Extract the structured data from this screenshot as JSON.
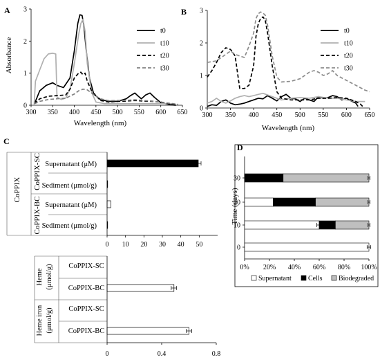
{
  "panel_letters": {
    "A": "A",
    "B": "B",
    "C": "C",
    "D": "D"
  },
  "chart_data": [
    {
      "panel": "A",
      "type": "line",
      "xlabel": "Wavelength (nm)",
      "ylabel": "Absorbance",
      "xlim": [
        300,
        650
      ],
      "ylim": [
        0,
        3
      ],
      "xticks": [
        300,
        350,
        400,
        450,
        500,
        550,
        600,
        650
      ],
      "yticks": [
        0,
        1,
        2,
        3
      ],
      "legend_position": "top-right",
      "series": [
        {
          "name": "t0",
          "color": "#000000",
          "dash": "solid",
          "x": [
            308,
            320,
            335,
            350,
            360,
            375,
            390,
            400,
            408,
            413,
            418,
            422,
            428,
            435,
            445,
            460,
            480,
            500,
            520,
            530,
            540,
            548,
            555,
            565,
            575,
            585,
            600,
            620,
            635
          ],
          "y": [
            0.05,
            0.45,
            0.62,
            0.7,
            0.62,
            0.55,
            0.85,
            1.7,
            2.55,
            2.82,
            2.8,
            2.5,
            1.65,
            0.85,
            0.35,
            0.18,
            0.12,
            0.12,
            0.2,
            0.3,
            0.38,
            0.28,
            0.2,
            0.32,
            0.38,
            0.25,
            0.08,
            0.02,
            0.0
          ]
        },
        {
          "name": "t10",
          "color": "#b0b0b0",
          "dash": "solid",
          "x": [
            307,
            310,
            320,
            330,
            340,
            350,
            357,
            360,
            370,
            380,
            390,
            400,
            410,
            415,
            420,
            425,
            430,
            440,
            450,
            470,
            500,
            550,
            600,
            630
          ],
          "y": [
            0.0,
            0.75,
            1.1,
            1.45,
            1.6,
            1.62,
            1.6,
            0.25,
            0.18,
            0.22,
            0.5,
            1.3,
            2.2,
            2.55,
            2.68,
            2.3,
            1.3,
            0.4,
            0.1,
            0.05,
            0.05,
            0.05,
            0.05,
            0.05
          ]
        },
        {
          "name": "t20",
          "color": "#000000",
          "dash": "dashed",
          "x": [
            308,
            320,
            340,
            360,
            380,
            390,
            400,
            410,
            415,
            420,
            425,
            430,
            440,
            450,
            460,
            480,
            500,
            520,
            540,
            560,
            580,
            600,
            620,
            640
          ],
          "y": [
            0.05,
            0.2,
            0.28,
            0.3,
            0.32,
            0.5,
            0.85,
            1.0,
            1.03,
            0.95,
            1.0,
            0.75,
            0.45,
            0.3,
            0.15,
            0.1,
            0.12,
            0.13,
            0.15,
            0.13,
            0.12,
            0.1,
            0.05,
            0.02
          ]
        },
        {
          "name": "t30",
          "color": "#808080",
          "dash": "dashed",
          "x": [
            308,
            320,
            340,
            360,
            380,
            400,
            410,
            420,
            430,
            440,
            460,
            480,
            500,
            520,
            540,
            560,
            580,
            600,
            620,
            640
          ],
          "y": [
            0.05,
            0.12,
            0.18,
            0.2,
            0.22,
            0.35,
            0.45,
            0.5,
            0.48,
            0.38,
            0.2,
            0.14,
            0.15,
            0.15,
            0.17,
            0.15,
            0.13,
            0.1,
            0.06,
            0.03
          ]
        }
      ]
    },
    {
      "panel": "B",
      "type": "line",
      "xlabel": "Wavelength (nm)",
      "ylabel": "",
      "xlim": [
        300,
        650
      ],
      "ylim": [
        0,
        3
      ],
      "xticks": [
        300,
        350,
        400,
        450,
        500,
        550,
        600,
        650
      ],
      "yticks": [
        0,
        1,
        2,
        3
      ],
      "legend_position": "top-right",
      "series": [
        {
          "name": "t0",
          "color": "#000000",
          "dash": "solid",
          "x": [
            300,
            310,
            320,
            330,
            340,
            350,
            360,
            370,
            380,
            390,
            400,
            410,
            420,
            430,
            440,
            450,
            460,
            470,
            480,
            490,
            500,
            510,
            520,
            530,
            540,
            550,
            560,
            570,
            580,
            590,
            600,
            610,
            620,
            625
          ],
          "y": [
            0.05,
            0.1,
            0.08,
            0.2,
            0.25,
            0.15,
            0.1,
            0.12,
            0.15,
            0.2,
            0.25,
            0.3,
            0.28,
            0.38,
            0.3,
            0.22,
            0.35,
            0.42,
            0.3,
            0.28,
            0.2,
            0.3,
            0.25,
            0.2,
            0.35,
            0.3,
            0.32,
            0.38,
            0.35,
            0.25,
            0.3,
            0.22,
            0.15,
            0.05
          ]
        },
        {
          "name": "t10",
          "color": "#b0b0b0",
          "dash": "solid",
          "x": [
            300,
            310,
            320,
            330,
            340,
            350,
            360,
            370,
            380,
            390,
            400,
            410,
            420,
            430,
            440,
            450,
            460,
            480,
            500,
            520,
            540,
            560,
            580,
            600,
            620,
            640
          ],
          "y": [
            0.15,
            0.2,
            0.3,
            0.2,
            0.15,
            0.22,
            0.3,
            0.35,
            0.38,
            0.35,
            0.38,
            0.42,
            0.45,
            0.4,
            0.35,
            0.3,
            0.25,
            0.3,
            0.32,
            0.3,
            0.35,
            0.3,
            0.3,
            0.25,
            0.2,
            0.2
          ]
        },
        {
          "name": "t20",
          "color": "#000000",
          "dash": "dashed",
          "x": [
            300,
            310,
            320,
            330,
            340,
            350,
            360,
            370,
            380,
            390,
            400,
            405,
            410,
            415,
            420,
            425,
            430,
            440,
            450,
            460,
            480,
            500,
            520,
            540,
            560,
            580,
            600,
            620,
            630,
            635
          ],
          "y": [
            0.95,
            1.15,
            1.4,
            1.7,
            1.85,
            1.8,
            1.6,
            0.6,
            0.6,
            0.7,
            1.3,
            2.2,
            2.6,
            2.75,
            2.8,
            2.7,
            2.3,
            1.3,
            0.5,
            0.3,
            0.25,
            0.25,
            0.25,
            0.3,
            0.3,
            0.32,
            0.3,
            0.2,
            0.12,
            0.05
          ]
        },
        {
          "name": "t30",
          "color": "#8c8c8c",
          "dash": "dashed",
          "x": [
            300,
            320,
            340,
            350,
            360,
            380,
            390,
            400,
            405,
            410,
            415,
            420,
            425,
            430,
            440,
            450,
            460,
            480,
            500,
            520,
            530,
            540,
            550,
            560,
            570,
            580,
            600,
            620,
            640,
            650
          ],
          "y": [
            1.4,
            1.45,
            1.65,
            1.75,
            1.65,
            1.55,
            1.9,
            2.3,
            2.75,
            2.9,
            2.95,
            2.92,
            2.85,
            2.55,
            1.6,
            0.95,
            0.8,
            0.82,
            0.9,
            1.1,
            1.15,
            1.1,
            1.0,
            1.05,
            1.15,
            1.0,
            0.85,
            0.7,
            0.55,
            0.5
          ]
        }
      ]
    },
    {
      "panel": "C-top",
      "type": "bar",
      "orientation": "horizontal",
      "group_label": "CoPPIX",
      "xlim": [
        0,
        60
      ],
      "xticks": [
        0,
        10,
        20,
        30,
        40,
        50
      ],
      "subgroups": [
        {
          "label": "CoPPIX-SC",
          "rows": [
            {
              "label": "Supernatant  (μM)",
              "value": 49.5,
              "error": 1.5,
              "fill": "#000000"
            },
            {
              "label": "Sediment  (μmol/g)",
              "value": 0,
              "error": 0,
              "fill": "#ffffff"
            }
          ]
        },
        {
          "label": "CoPPIX-BC",
          "rows": [
            {
              "label": "Supernatant (μM)",
              "value": 2.0,
              "error": 0,
              "fill": "#ffffff"
            },
            {
              "label": "Sediment  (μmol/g)",
              "value": 0.3,
              "error": 0,
              "fill": "#ffffff"
            }
          ]
        }
      ]
    },
    {
      "panel": "C-bottom",
      "type": "bar",
      "orientation": "horizontal",
      "xlim": [
        0,
        0.8
      ],
      "xticks": [
        0,
        0.4,
        0.8
      ],
      "groups": [
        {
          "label": "Heme",
          "unit": "(μmol/g)",
          "rows": [
            {
              "label": "CoPPIX-SC",
              "value": 0,
              "error": 0
            },
            {
              "label": "CoPPIX-BC",
              "value": 0.49,
              "error": 0.02
            }
          ]
        },
        {
          "label": "Heme iron",
          "unit": "(μmol/g)",
          "rows": [
            {
              "label": "CoPPIX-SC",
              "value": 0,
              "error": 0
            },
            {
              "label": "CoPPIX-BC",
              "value": 0.6,
              "error": 0.02
            }
          ]
        }
      ]
    },
    {
      "panel": "D",
      "type": "bar",
      "orientation": "horizontal",
      "stacked": "percent",
      "ylabel": "Time (days)",
      "xticks": [
        "0%",
        "20%",
        "40%",
        "60%",
        "80%",
        "100%"
      ],
      "categories": [
        "30",
        "20",
        "10",
        "0"
      ],
      "legend_position": "bottom",
      "series": [
        {
          "name": "Supernatant",
          "fill": "#ffffff",
          "values": [
            0,
            23,
            60,
            100
          ],
          "errors": [
            0,
            0,
            2,
            1.5
          ]
        },
        {
          "name": "Cells",
          "fill": "#000000",
          "values": [
            31,
            34,
            13,
            0
          ],
          "errors": [
            1,
            1.5,
            0,
            0
          ]
        },
        {
          "name": "Biodegraded",
          "fill": "#bfbfbf",
          "values": [
            69,
            43,
            27,
            0
          ],
          "errors": [
            0.8,
            0.8,
            0.8,
            0
          ]
        }
      ]
    }
  ]
}
